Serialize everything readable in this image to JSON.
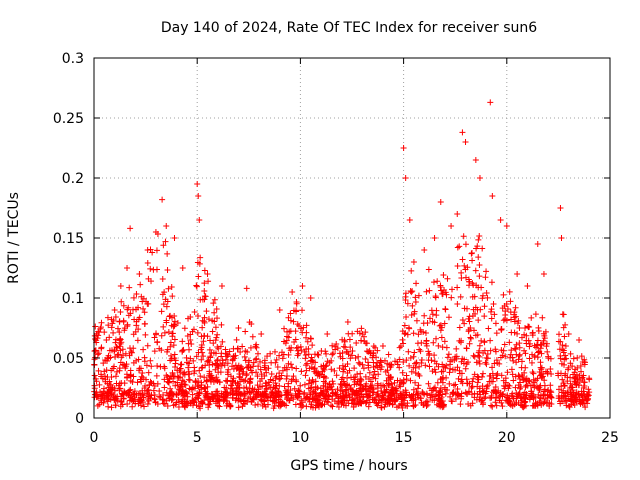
{
  "chart_data": {
    "type": "scatter",
    "title": "Day 140 of 2024, Rate Of TEC Index for receiver sun6",
    "xlabel": "GPS time / hours",
    "ylabel": "ROTI / TECUs",
    "xlim": [
      0,
      25
    ],
    "ylim": [
      0,
      0.3
    ],
    "xticks": [
      0,
      5,
      10,
      15,
      20,
      25
    ],
    "xtick_labels": [
      "0",
      "5",
      "10",
      "15",
      "20",
      "25"
    ],
    "yticks": [
      0,
      0.05,
      0.1,
      0.15,
      0.2,
      0.25,
      0.3
    ],
    "ytick_labels": [
      "0",
      "0.05",
      "0.1",
      "0.15",
      "0.2",
      "0.25",
      "0.3"
    ],
    "grid": true,
    "marker": "+",
    "color": "#ff0000",
    "x_range_hours": [
      0,
      24
    ],
    "approx_points": [
      [
        0.2,
        0.072
      ],
      [
        0.6,
        0.065
      ],
      [
        1.0,
        0.09
      ],
      [
        1.3,
        0.11
      ],
      [
        1.6,
        0.125
      ],
      [
        1.75,
        0.158
      ],
      [
        2.2,
        0.12
      ],
      [
        2.6,
        0.14
      ],
      [
        3.0,
        0.155
      ],
      [
        3.3,
        0.182
      ],
      [
        3.5,
        0.16
      ],
      [
        3.9,
        0.15
      ],
      [
        4.3,
        0.125
      ],
      [
        5.0,
        0.195
      ],
      [
        5.05,
        0.185
      ],
      [
        5.1,
        0.165
      ],
      [
        5.5,
        0.12
      ],
      [
        6.2,
        0.11
      ],
      [
        7.0,
        0.075
      ],
      [
        7.4,
        0.108
      ],
      [
        8.1,
        0.07
      ],
      [
        9.0,
        0.09
      ],
      [
        9.6,
        0.105
      ],
      [
        10.1,
        0.11
      ],
      [
        10.5,
        0.1
      ],
      [
        11.3,
        0.07
      ],
      [
        12.3,
        0.08
      ],
      [
        13.0,
        0.07
      ],
      [
        14.0,
        0.06
      ],
      [
        15.0,
        0.225
      ],
      [
        15.1,
        0.2
      ],
      [
        15.3,
        0.165
      ],
      [
        15.5,
        0.13
      ],
      [
        16.0,
        0.14
      ],
      [
        16.5,
        0.15
      ],
      [
        16.8,
        0.18
      ],
      [
        17.3,
        0.16
      ],
      [
        17.6,
        0.17
      ],
      [
        17.85,
        0.238
      ],
      [
        18.0,
        0.23
      ],
      [
        18.5,
        0.215
      ],
      [
        18.7,
        0.2
      ],
      [
        19.2,
        0.263
      ],
      [
        19.3,
        0.185
      ],
      [
        19.7,
        0.165
      ],
      [
        20.0,
        0.16
      ],
      [
        20.5,
        0.12
      ],
      [
        21.0,
        0.11
      ],
      [
        21.5,
        0.145
      ],
      [
        21.8,
        0.12
      ],
      [
        22.6,
        0.175
      ],
      [
        22.65,
        0.15
      ],
      [
        23.0,
        0.07
      ],
      [
        23.5,
        0.065
      ]
    ]
  }
}
